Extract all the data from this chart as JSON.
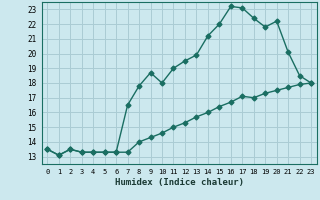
{
  "xlabel": "Humidex (Indice chaleur)",
  "bg_color": "#cce8ee",
  "grid_color": "#aaccd4",
  "line_color": "#1a6e62",
  "xlim": [
    -0.5,
    23.5
  ],
  "ylim": [
    12.5,
    23.5
  ],
  "yticks": [
    13,
    14,
    15,
    16,
    17,
    18,
    19,
    20,
    21,
    22,
    23
  ],
  "xticks": [
    0,
    1,
    2,
    3,
    4,
    5,
    6,
    7,
    8,
    9,
    10,
    11,
    12,
    13,
    14,
    15,
    16,
    17,
    18,
    19,
    20,
    21,
    22,
    23
  ],
  "line1_x": [
    0,
    1,
    2,
    3,
    4,
    5,
    6,
    7,
    8,
    9,
    10,
    11,
    12,
    13,
    14,
    15,
    16,
    17,
    18,
    19,
    20,
    21,
    22,
    23
  ],
  "line1_y": [
    13.5,
    13.1,
    13.5,
    13.3,
    13.3,
    13.3,
    13.3,
    16.5,
    17.8,
    18.7,
    18.0,
    19.0,
    19.5,
    19.9,
    21.2,
    22.0,
    23.2,
    23.1,
    22.4,
    21.8,
    22.2,
    20.1,
    18.5,
    18.0
  ],
  "line2_x": [
    0,
    1,
    2,
    3,
    4,
    5,
    6,
    7,
    8,
    9,
    10,
    11,
    12,
    13,
    14,
    15,
    16,
    17,
    18,
    19,
    20,
    21,
    22,
    23
  ],
  "line2_y": [
    13.5,
    13.1,
    13.5,
    13.3,
    13.3,
    13.3,
    13.3,
    13.3,
    14.0,
    14.3,
    14.6,
    15.0,
    15.3,
    15.7,
    16.0,
    16.4,
    16.7,
    17.1,
    17.0,
    17.3,
    17.5,
    17.7,
    17.9,
    18.0
  ],
  "marker": "D",
  "markersize": 2.5,
  "linewidth": 1.0
}
